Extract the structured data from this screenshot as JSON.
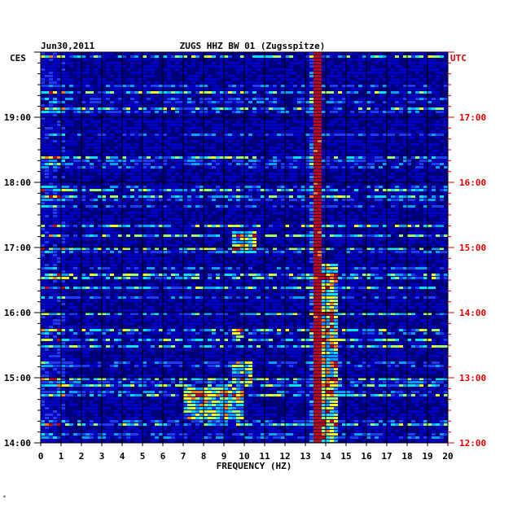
{
  "chart_data": {
    "type": "heatmap",
    "title": "ZUGS HHZ BW 01 (Zugsspitze)",
    "date": "Jun30,2011",
    "xlabel": "FREQUENCY (HZ)",
    "xlim": [
      0,
      20
    ],
    "x_ticks": [
      "0",
      "1",
      "2",
      "3",
      "4",
      "5",
      "6",
      "7",
      "8",
      "9",
      "10",
      "11",
      "12",
      "13",
      "14",
      "15",
      "16",
      "17",
      "18",
      "19",
      "20"
    ],
    "left_axis_label": "CES",
    "right_axis_label": "UTC",
    "left_time_ticks": [
      "19:00",
      "18:00",
      "17:00",
      "16:00",
      "15:00",
      "14:00"
    ],
    "right_time_ticks": [
      "17:00",
      "16:00",
      "15:00",
      "14:00",
      "13:00",
      "12:00"
    ],
    "time_range_ces": [
      "14:00",
      "20:00"
    ],
    "features": [
      {
        "type": "persistent_line",
        "freq_hz": 13.6,
        "time_ces": [
          "14:00",
          "20:00"
        ]
      },
      {
        "type": "band",
        "freq_hz": [
          13.6,
          14.6
        ],
        "time_ces": [
          "14:00",
          "16:45"
        ]
      },
      {
        "type": "patch",
        "freq_hz": [
          7.0,
          10.0
        ],
        "time_ces": [
          "14:20",
          "14:50"
        ]
      },
      {
        "type": "patch",
        "freq_hz": [
          9.5,
          10.5
        ],
        "time_ces": [
          "16:55",
          "17:15"
        ]
      },
      {
        "type": "patch",
        "freq_hz": [
          9.5,
          10.3
        ],
        "time_ces": [
          "14:55",
          "15:15"
        ]
      },
      {
        "type": "patch",
        "freq_hz": [
          9.5,
          10.0
        ],
        "time_ces": [
          "15:35",
          "15:45"
        ]
      }
    ],
    "colormap": [
      "#00007a",
      "#0000c8",
      "#1a3cff",
      "#00a0ff",
      "#00e0ff",
      "#9cff6a",
      "#ffff00",
      "#ff7a00",
      "#c80000"
    ],
    "background_color": "#00007a"
  }
}
